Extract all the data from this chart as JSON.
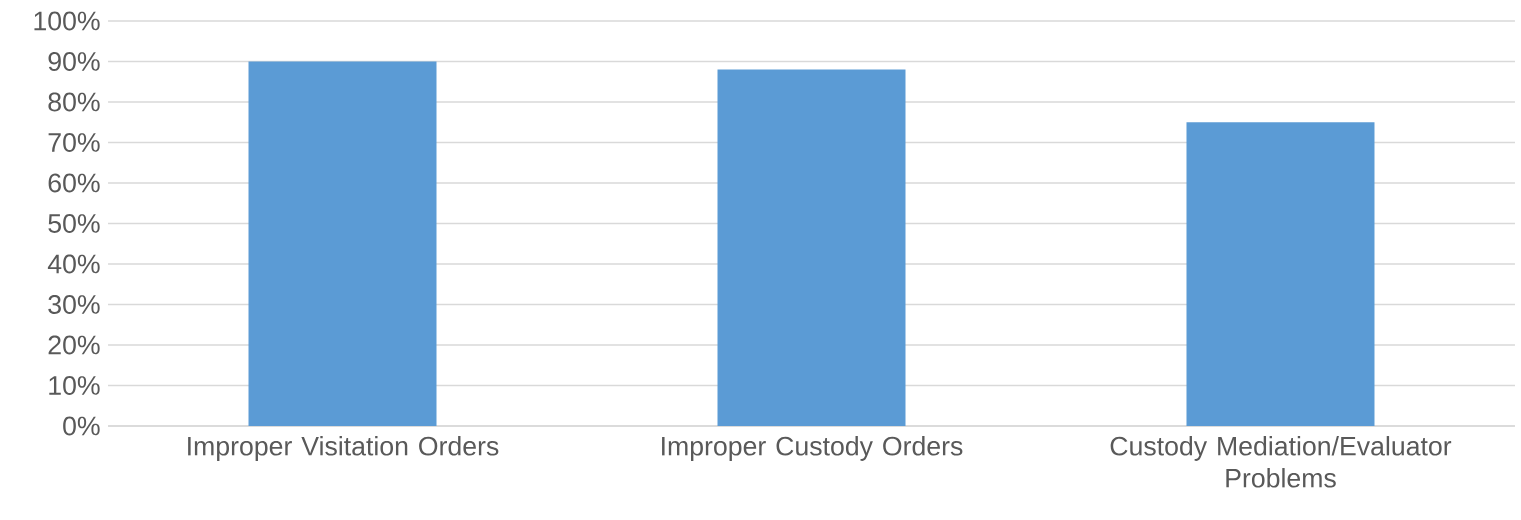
{
  "chart_data": {
    "type": "bar",
    "categories": [
      "Improper Visitation Orders",
      "Improper Custody Orders",
      "Custody Mediation/Evaluator Problems"
    ],
    "values": [
      90,
      88,
      75
    ],
    "color": "#5b9bd5",
    "ylim": [
      0,
      100
    ],
    "yticks": [
      {
        "value": 0,
        "label": "0%"
      },
      {
        "value": 10,
        "label": "10%"
      },
      {
        "value": 20,
        "label": "20%"
      },
      {
        "value": 30,
        "label": "30%"
      },
      {
        "value": 40,
        "label": "40%"
      },
      {
        "value": 50,
        "label": "50%"
      },
      {
        "value": 60,
        "label": "60%"
      },
      {
        "value": 70,
        "label": "70%"
      },
      {
        "value": 80,
        "label": "80%"
      },
      {
        "value": 90,
        "label": "90%"
      },
      {
        "value": 100,
        "label": "100%"
      }
    ],
    "grid": "y"
  }
}
